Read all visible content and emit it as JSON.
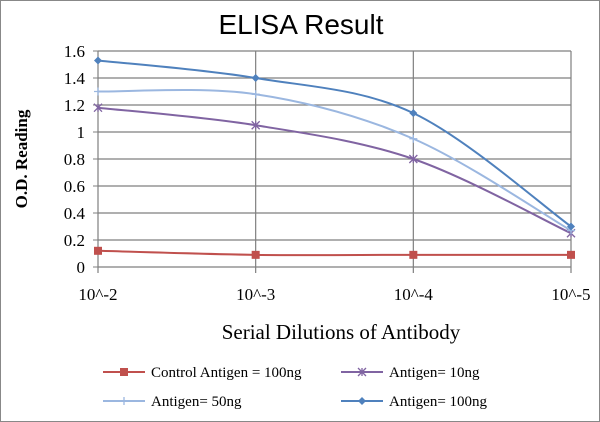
{
  "chart_data": {
    "type": "line",
    "title": "ELISA Result",
    "xlabel": "Serial Dilutions  of Antibody",
    "ylabel": "O.D. Reading",
    "categories": [
      "10^-2",
      "10^-3",
      "10^-4",
      "10^-5"
    ],
    "ylim": [
      0,
      1.6
    ],
    "yticks": [
      "0",
      "0.2",
      "0.4",
      "0.6",
      "0.8",
      "1",
      "1.2",
      "1.4",
      "1.6"
    ],
    "grid": true,
    "legend_position": "bottom",
    "series": [
      {
        "name": "Control Antigen = 100ng",
        "values": [
          0.12,
          0.09,
          0.09,
          0.09
        ],
        "color": "#c0504d",
        "marker": "square"
      },
      {
        "name": "Antigen= 10ng",
        "values": [
          1.18,
          1.05,
          0.8,
          0.25
        ],
        "color": "#8064a2",
        "marker": "x"
      },
      {
        "name": "Antigen= 50ng",
        "values": [
          1.3,
          1.28,
          0.95,
          0.27
        ],
        "color": "#9bb7e0",
        "marker": "plus"
      },
      {
        "name": "Antigen= 100ng",
        "values": [
          1.53,
          1.4,
          1.14,
          0.3
        ],
        "color": "#4f81bd",
        "marker": "diamond"
      }
    ]
  }
}
